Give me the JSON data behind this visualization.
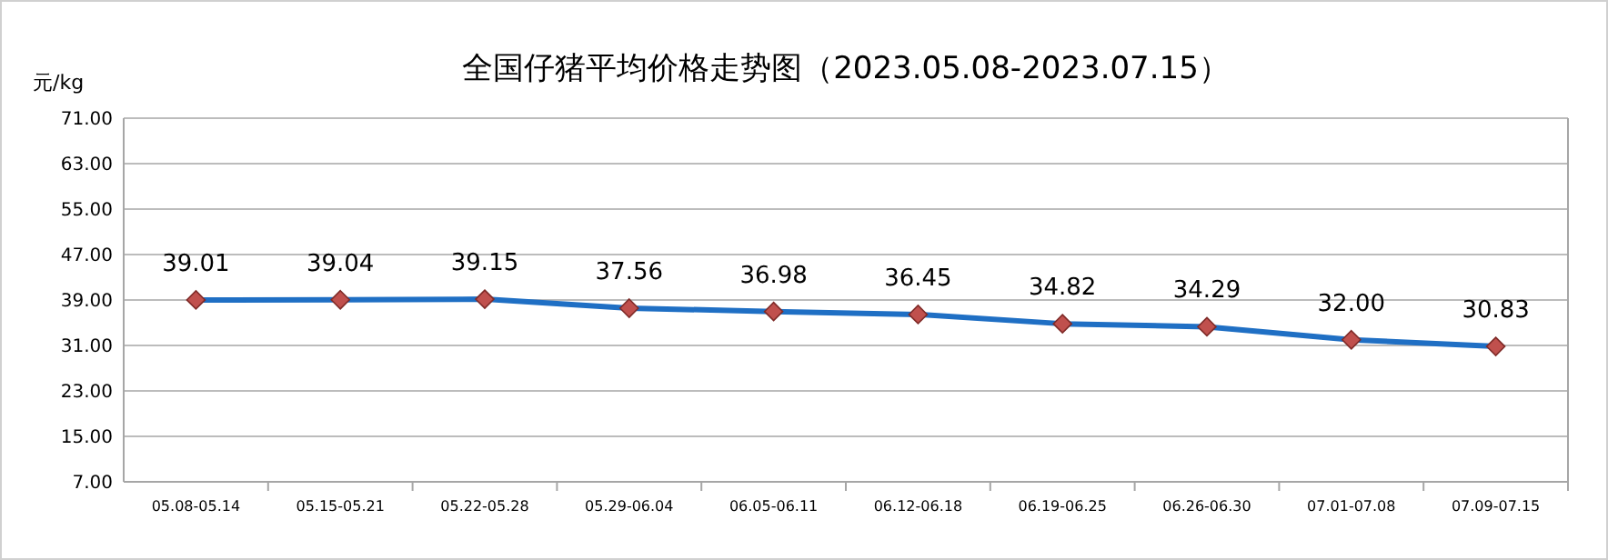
{
  "chart_data": {
    "type": "line",
    "title": "全国仔猪平均价格走势图（2023.05.08-2023.07.15）",
    "ylabel": "元/kg",
    "categories": [
      "05.08-05.14",
      "05.15-05.21",
      "05.22-05.28",
      "05.29-06.04",
      "06.05-06.11",
      "06.12-06.18",
      "06.19-06.25",
      "06.26-06.30",
      "07.01-07.08",
      "07.09-07.15"
    ],
    "series": [
      {
        "color": "#1f6fc4",
        "values": [
          39.01,
          39.04,
          39.15,
          37.56,
          36.98,
          36.45,
          34.82,
          34.29,
          32.0,
          30.83
        ],
        "value_labels": [
          "39.01",
          "39.04",
          "39.15",
          "37.56",
          "36.98",
          "36.45",
          "34.82",
          "34.29",
          "32.00",
          "30.83"
        ]
      }
    ],
    "ylim": [
      7,
      71
    ],
    "yticks": [
      {
        "value": 7,
        "label": "7.00"
      },
      {
        "value": 15,
        "label": "15.00"
      },
      {
        "value": 23,
        "label": "23.00"
      },
      {
        "value": 31,
        "label": "31.00"
      },
      {
        "value": 39,
        "label": "39.00"
      },
      {
        "value": 47,
        "label": "47.00"
      },
      {
        "value": 55,
        "label": "55.00"
      },
      {
        "value": 63,
        "label": "63.00"
      },
      {
        "value": 71,
        "label": "71.00"
      }
    ],
    "grid": "y",
    "marker": "diamond",
    "line_style": "solid"
  }
}
